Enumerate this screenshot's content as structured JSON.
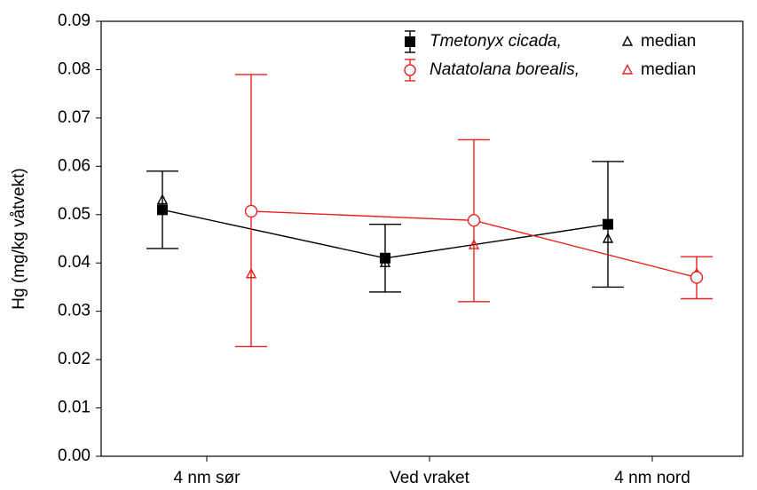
{
  "chart_data": {
    "type": "errorbar-line",
    "y_label": "Hg (mg/kg våtvekt)",
    "categories": [
      "4 nm sør",
      "Ved vraket",
      "4 nm nord"
    ],
    "median_label": "median",
    "series": [
      {
        "name": "Tmetonyx cicada,",
        "color": "#000000",
        "marker": "square",
        "values": [
          0.051,
          0.041,
          0.048
        ],
        "lower": [
          0.043,
          0.034,
          0.035
        ],
        "upper": [
          0.059,
          0.048,
          0.061
        ],
        "median_values": [
          0.053,
          0.04,
          0.045
        ]
      },
      {
        "name": "Natatolana borealis,",
        "color": "#e8211f",
        "marker": "circle",
        "values": [
          0.0507,
          0.0488,
          0.037
        ],
        "lower": [
          0.0227,
          0.032,
          0.0326
        ],
        "upper": [
          0.079,
          0.0655,
          0.0413
        ],
        "median_values": [
          0.0377,
          0.0437,
          0.0378
        ]
      }
    ],
    "ylim": [
      0,
      0.09
    ],
    "yticks": [
      {
        "value": 0,
        "label": "0.00"
      },
      0.01,
      0.02,
      0.03,
      0.04,
      0.05,
      0.06,
      0.07,
      0.08,
      0.09
    ]
  }
}
